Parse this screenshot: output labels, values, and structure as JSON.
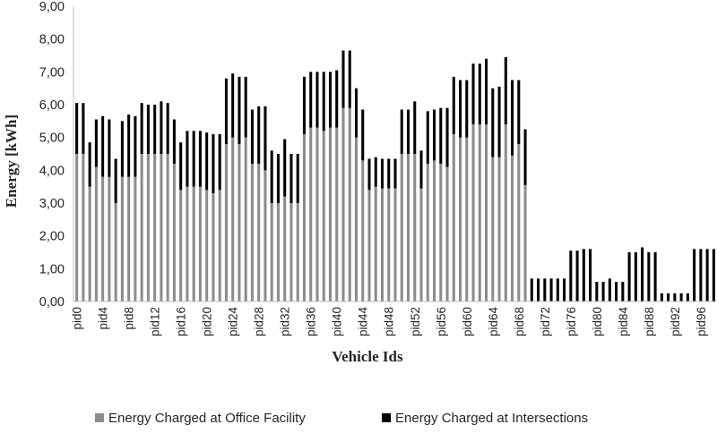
{
  "chart_data": {
    "type": "bar",
    "stacked": true,
    "title": "",
    "xlabel": "Vehicle Ids",
    "ylabel": "Energy [kWh]",
    "ylim": [
      0,
      9
    ],
    "yticks": [
      "0,00",
      "1,00",
      "2,00",
      "3,00",
      "4,00",
      "5,00",
      "6,00",
      "7,00",
      "8,00",
      "9,00"
    ],
    "grid": false,
    "legend_position": "bottom",
    "categories": [
      "pid0",
      "pid1",
      "pid2",
      "pid3",
      "pid4",
      "pid5",
      "pid6",
      "pid7",
      "pid8",
      "pid9",
      "pid10",
      "pid11",
      "pid12",
      "pid13",
      "pid14",
      "pid15",
      "pid16",
      "pid17",
      "pid18",
      "pid19",
      "pid20",
      "pid21",
      "pid22",
      "pid23",
      "pid24",
      "pid25",
      "pid26",
      "pid27",
      "pid28",
      "pid29",
      "pid30",
      "pid31",
      "pid32",
      "pid33",
      "pid34",
      "pid35",
      "pid36",
      "pid37",
      "pid38",
      "pid39",
      "pid40",
      "pid41",
      "pid42",
      "pid43",
      "pid44",
      "pid45",
      "pid46",
      "pid47",
      "pid48",
      "pid49",
      "pid50",
      "pid51",
      "pid52",
      "pid53",
      "pid54",
      "pid55",
      "pid56",
      "pid57",
      "pid58",
      "pid59",
      "pid60",
      "pid61",
      "pid62",
      "pid63",
      "pid64",
      "pid65",
      "pid66",
      "pid67",
      "pid68",
      "pid69",
      "pid70",
      "pid71",
      "pid72",
      "pid73",
      "pid74",
      "pid75",
      "pid76",
      "pid77",
      "pid78",
      "pid79",
      "pid80",
      "pid81",
      "pid82",
      "pid83",
      "pid84",
      "pid85",
      "pid86",
      "pid87",
      "pid88",
      "pid89",
      "pid90",
      "pid91",
      "pid92",
      "pid93",
      "pid94",
      "pid95",
      "pid96",
      "pid97",
      "pid98"
    ],
    "visible_tick_labels": [
      "pid0",
      "pid4",
      "pid8",
      "pid12",
      "pid16",
      "pid20",
      "pid24",
      "pid28",
      "pid32",
      "pid36",
      "pid40",
      "pid44",
      "pid48",
      "pid52",
      "pid56",
      "pid60",
      "pid64",
      "pid68",
      "pid72",
      "pid76",
      "pid80",
      "pid84",
      "pid88",
      "pid92",
      "pid96"
    ],
    "series": [
      {
        "name": "Energy Charged at Office Facility",
        "color": "#8c8c8c",
        "values": [
          4.5,
          4.5,
          3.5,
          4.1,
          3.8,
          3.8,
          3.0,
          3.8,
          3.8,
          3.8,
          4.5,
          4.5,
          4.5,
          4.5,
          4.5,
          4.2,
          3.4,
          3.5,
          3.5,
          3.5,
          3.4,
          3.3,
          3.4,
          4.8,
          5.0,
          4.8,
          5.0,
          4.2,
          4.2,
          4.0,
          3.0,
          3.0,
          3.2,
          3.0,
          3.0,
          5.1,
          5.3,
          5.3,
          5.2,
          5.3,
          5.3,
          5.9,
          5.9,
          5.0,
          4.3,
          3.4,
          3.5,
          3.45,
          3.45,
          3.45,
          4.5,
          4.5,
          4.5,
          3.45,
          4.2,
          4.3,
          4.2,
          4.1,
          5.1,
          5.0,
          5.0,
          5.4,
          5.4,
          5.4,
          4.4,
          4.4,
          5.4,
          4.45,
          4.8,
          3.55,
          0,
          0,
          0,
          0,
          0,
          0,
          0,
          0,
          0,
          0,
          0,
          0,
          0,
          0,
          0,
          0,
          0,
          0,
          0,
          0,
          0,
          0,
          0,
          0,
          0,
          0,
          0,
          0,
          0
        ]
      },
      {
        "name": "Energy Charged at Intersections",
        "color": "#000000",
        "values": [
          1.55,
          1.55,
          1.35,
          1.45,
          1.85,
          1.75,
          1.35,
          1.7,
          1.9,
          1.85,
          1.55,
          1.5,
          1.5,
          1.6,
          1.55,
          1.35,
          1.45,
          1.7,
          1.7,
          1.7,
          1.75,
          1.8,
          1.7,
          2.0,
          1.95,
          2.05,
          1.85,
          1.65,
          1.75,
          1.95,
          1.6,
          1.5,
          1.75,
          1.5,
          1.5,
          1.75,
          1.7,
          1.7,
          1.8,
          1.7,
          1.75,
          1.75,
          1.75,
          1.5,
          1.55,
          0.95,
          0.9,
          0.9,
          0.9,
          0.9,
          1.35,
          1.35,
          1.6,
          1.15,
          1.6,
          1.55,
          1.7,
          1.8,
          1.75,
          1.75,
          1.75,
          1.85,
          1.85,
          2.0,
          2.1,
          2.15,
          2.05,
          2.3,
          1.95,
          1.7,
          0.7,
          0.7,
          0.7,
          0.7,
          0.7,
          0.7,
          1.55,
          1.55,
          1.6,
          1.6,
          0.6,
          0.6,
          0.7,
          0.6,
          0.6,
          1.5,
          1.5,
          1.65,
          1.5,
          1.5,
          0.25,
          0.25,
          0.25,
          0.25,
          0.25,
          1.6,
          1.6,
          1.6,
          1.6
        ]
      }
    ]
  }
}
